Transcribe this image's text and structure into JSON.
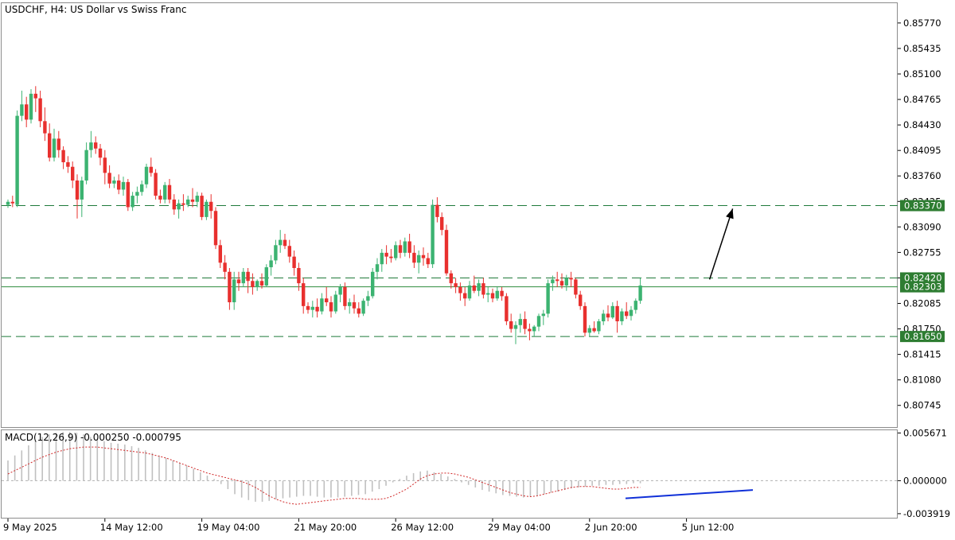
{
  "symbol_label": "USDCHF, H4:  US Dollar vs Swiss Franc",
  "macd": {
    "label": "MACD(12,26,9) -0.000250 -0.000795",
    "ticks": [
      "0.005671",
      "0.000000",
      "-0.003919"
    ],
    "tick_values": [
      0.005671,
      0.0,
      -0.003919
    ],
    "range": [
      -0.0044,
      0.0059
    ],
    "histogram": [
      0.0024,
      0.003,
      0.0036,
      0.0042,
      0.0048,
      0.0052,
      0.0055,
      0.0057,
      0.0058,
      0.0058,
      0.0057,
      0.0055,
      0.0052,
      0.0049,
      0.0047,
      0.0045,
      0.0044,
      0.0043,
      0.0041,
      0.0039,
      0.0036,
      0.0033,
      0.003,
      0.0027,
      0.0024,
      0.0021,
      0.0018,
      0.0014,
      0.001,
      0.0006,
      0.0002,
      -0.0004,
      -0.001,
      -0.0016,
      -0.002,
      -0.0023,
      -0.0025,
      -0.0025,
      -0.0024,
      -0.0022,
      -0.0021,
      -0.002,
      -0.0019,
      -0.0018,
      -0.0018,
      -0.0019,
      -0.002,
      -0.002,
      -0.002,
      -0.0019,
      -0.0018,
      -0.0017,
      -0.0016,
      -0.0013,
      -0.001,
      -0.0006,
      -0.0002,
      0.0002,
      0.0006,
      0.0009,
      0.0011,
      0.0012,
      0.001,
      0.0008,
      0.0005,
      0.0002,
      -0.0002,
      -0.0005,
      -0.0008,
      -0.0011,
      -0.0013,
      -0.0015,
      -0.0017,
      -0.0018,
      -0.0019,
      -0.002,
      -0.0019,
      -0.0018,
      -0.0016,
      -0.0014,
      -0.0013,
      -0.0011,
      -0.0009,
      -0.0008,
      -0.0007,
      -0.0006,
      -0.0006,
      -0.0005,
      -0.0005,
      -0.0004,
      -0.0004,
      -0.0003,
      -0.0003
    ],
    "signal": [
      0.0008,
      0.0012,
      0.0016,
      0.002,
      0.0024,
      0.0028,
      0.0031,
      0.0034,
      0.0036,
      0.0038,
      0.0039,
      0.004,
      0.004,
      0.004,
      0.0039,
      0.0038,
      0.0037,
      0.0036,
      0.0035,
      0.0034,
      0.0033,
      0.0031,
      0.0029,
      0.0027,
      0.0024,
      0.0021,
      0.0018,
      0.0015,
      0.0012,
      0.0009,
      0.0007,
      0.0005,
      0.0003,
      0.0001,
      -0.0001,
      -0.0004,
      -0.0008,
      -0.0013,
      -0.0018,
      -0.0022,
      -0.0025,
      -0.0027,
      -0.0028,
      -0.0027,
      -0.0026,
      -0.0025,
      -0.0024,
      -0.0023,
      -0.0022,
      -0.0021,
      -0.0021,
      -0.0021,
      -0.0022,
      -0.0022,
      -0.0022,
      -0.0021,
      -0.0018,
      -0.0014,
      -0.001,
      -0.0004,
      0.0002,
      0.0006,
      0.0008,
      0.0009,
      0.0009,
      0.0008,
      0.0006,
      0.0004,
      0.0001,
      -0.0002,
      -0.0005,
      -0.0008,
      -0.0011,
      -0.0014,
      -0.0016,
      -0.0018,
      -0.0019,
      -0.0018,
      -0.0016,
      -0.0014,
      -0.0012,
      -0.001,
      -0.0008,
      -0.0007,
      -0.0007,
      -0.0007,
      -0.0008,
      -0.0009,
      -0.001,
      -0.001,
      -0.0009,
      -0.0008,
      -0.0008
    ]
  },
  "chart_data": {
    "type": "candlestick",
    "price_range": [
      0.8046,
      0.8603
    ],
    "y_ticks": [
      "0.85770",
      "0.85435",
      "0.85100",
      "0.84765",
      "0.84430",
      "0.84095",
      "0.83760",
      "0.83425",
      "0.83090",
      "0.82755",
      "0.82420",
      "0.82085",
      "0.81750",
      "0.81415",
      "0.81080",
      "0.80745"
    ],
    "y_tick_values": [
      0.8577,
      0.85435,
      0.851,
      0.84765,
      0.8443,
      0.84095,
      0.8376,
      0.83425,
      0.8309,
      0.82755,
      0.8242,
      0.82085,
      0.8175,
      0.81415,
      0.8108,
      0.80745
    ],
    "x_labels": [
      "9 May 2025",
      "14 May 12:00",
      "19 May 04:00",
      "21 May 20:00",
      "26 May 12:00",
      "29 May 04:00",
      "2 Jun 20:00",
      "5 Jun 12:00"
    ],
    "x_label_bar_index": [
      0,
      21,
      42,
      63,
      84,
      105,
      126,
      147
    ],
    "levels": [
      {
        "label": "0.83370",
        "value": 0.8337,
        "style": "dashed",
        "color": "#1f7a3a"
      },
      {
        "label": "0.82420",
        "value": 0.8242,
        "style": "dashed",
        "color": "#1f7a3a"
      },
      {
        "label": "0.82303",
        "value": 0.82303,
        "style": "solid",
        "color": "#2e8b3e"
      },
      {
        "label": "0.81650",
        "value": 0.8165,
        "style": "dashed",
        "color": "#1f7a3a"
      }
    ],
    "arrow": {
      "from_bar": 152,
      "from_price": 0.824,
      "to_bar": 157,
      "to_price": 0.8333
    },
    "up_color": "#3cb371",
    "down_color": "#e8302e",
    "candles": [
      [
        0.8338,
        0.8345,
        0.8334,
        0.8342
      ],
      [
        0.8342,
        0.835,
        0.8335,
        0.834
      ],
      [
        0.8338,
        0.8462,
        0.8335,
        0.8455
      ],
      [
        0.8455,
        0.8488,
        0.8448,
        0.847
      ],
      [
        0.847,
        0.848,
        0.844,
        0.845
      ],
      [
        0.845,
        0.849,
        0.8445,
        0.8484
      ],
      [
        0.8484,
        0.8494,
        0.846,
        0.8478
      ],
      [
        0.8478,
        0.8488,
        0.844,
        0.8448
      ],
      [
        0.8448,
        0.8466,
        0.8422,
        0.8432
      ],
      [
        0.8432,
        0.8445,
        0.8395,
        0.84
      ],
      [
        0.84,
        0.8438,
        0.8395,
        0.8425
      ],
      [
        0.8425,
        0.8435,
        0.84,
        0.841
      ],
      [
        0.841,
        0.8415,
        0.8385,
        0.8394
      ],
      [
        0.8394,
        0.8402,
        0.838,
        0.8388
      ],
      [
        0.8388,
        0.8395,
        0.836,
        0.837
      ],
      [
        0.837,
        0.8378,
        0.832,
        0.8345
      ],
      [
        0.8345,
        0.8375,
        0.8322,
        0.837
      ],
      [
        0.837,
        0.842,
        0.8365,
        0.841
      ],
      [
        0.841,
        0.8435,
        0.84,
        0.842
      ],
      [
        0.842,
        0.8428,
        0.8405,
        0.8412
      ],
      [
        0.8412,
        0.8418,
        0.839,
        0.84
      ],
      [
        0.84,
        0.841,
        0.8365,
        0.838
      ],
      [
        0.838,
        0.839,
        0.836,
        0.8366
      ],
      [
        0.8366,
        0.8375,
        0.836,
        0.837
      ],
      [
        0.837,
        0.8378,
        0.8352,
        0.8358
      ],
      [
        0.8358,
        0.8375,
        0.835,
        0.8368
      ],
      [
        0.8368,
        0.8372,
        0.833,
        0.8335
      ],
      [
        0.8335,
        0.8355,
        0.833,
        0.835
      ],
      [
        0.835,
        0.8362,
        0.834,
        0.8355
      ],
      [
        0.8355,
        0.837,
        0.835,
        0.8365
      ],
      [
        0.8365,
        0.8392,
        0.836,
        0.8388
      ],
      [
        0.8388,
        0.84,
        0.8375,
        0.838
      ],
      [
        0.838,
        0.8385,
        0.8345,
        0.835
      ],
      [
        0.835,
        0.8358,
        0.834,
        0.8345
      ],
      [
        0.8345,
        0.8368,
        0.834,
        0.8364
      ],
      [
        0.8364,
        0.8372,
        0.834,
        0.8345
      ],
      [
        0.8345,
        0.8352,
        0.8325,
        0.8332
      ],
      [
        0.8332,
        0.8345,
        0.832,
        0.834
      ],
      [
        0.834,
        0.8352,
        0.833,
        0.8338
      ],
      [
        0.8338,
        0.835,
        0.8335,
        0.8345
      ],
      [
        0.8345,
        0.836,
        0.8335,
        0.8342
      ],
      [
        0.8342,
        0.8355,
        0.8335,
        0.835
      ],
      [
        0.835,
        0.8354,
        0.8318,
        0.8322
      ],
      [
        0.8322,
        0.8345,
        0.8318,
        0.8342
      ],
      [
        0.8342,
        0.8352,
        0.832,
        0.833
      ],
      [
        0.833,
        0.8335,
        0.828,
        0.8285
      ],
      [
        0.8285,
        0.8292,
        0.8255,
        0.8262
      ],
      [
        0.8262,
        0.8272,
        0.824,
        0.825
      ],
      [
        0.825,
        0.8255,
        0.82,
        0.821
      ],
      [
        0.821,
        0.825,
        0.82,
        0.824
      ],
      [
        0.824,
        0.825,
        0.8225,
        0.8235
      ],
      [
        0.8235,
        0.8255,
        0.823,
        0.825
      ],
      [
        0.825,
        0.8255,
        0.8222,
        0.8238
      ],
      [
        0.8238,
        0.8248,
        0.822,
        0.823
      ],
      [
        0.823,
        0.824,
        0.8225,
        0.8238
      ],
      [
        0.8238,
        0.8248,
        0.8228,
        0.8232
      ],
      [
        0.8232,
        0.826,
        0.823,
        0.8256
      ],
      [
        0.8256,
        0.8272,
        0.8245,
        0.8265
      ],
      [
        0.8265,
        0.8292,
        0.826,
        0.8285
      ],
      [
        0.8285,
        0.8305,
        0.8275,
        0.8292
      ],
      [
        0.8292,
        0.83,
        0.828,
        0.8284
      ],
      [
        0.8284,
        0.8292,
        0.8262,
        0.827
      ],
      [
        0.827,
        0.8278,
        0.8245,
        0.8255
      ],
      [
        0.8255,
        0.8262,
        0.8225,
        0.8235
      ],
      [
        0.8235,
        0.8242,
        0.8195,
        0.8205
      ],
      [
        0.8205,
        0.821,
        0.8195,
        0.82
      ],
      [
        0.82,
        0.8212,
        0.819,
        0.8204
      ],
      [
        0.8204,
        0.8215,
        0.819,
        0.8198
      ],
      [
        0.8198,
        0.8222,
        0.8194,
        0.8215
      ],
      [
        0.8215,
        0.823,
        0.8205,
        0.821
      ],
      [
        0.821,
        0.8218,
        0.819,
        0.8198
      ],
      [
        0.8198,
        0.8225,
        0.8195,
        0.822
      ],
      [
        0.822,
        0.8234,
        0.821,
        0.823
      ],
      [
        0.823,
        0.8236,
        0.82,
        0.8205
      ],
      [
        0.8205,
        0.8215,
        0.8195,
        0.821
      ],
      [
        0.821,
        0.822,
        0.8195,
        0.8202
      ],
      [
        0.8202,
        0.821,
        0.819,
        0.8195
      ],
      [
        0.8195,
        0.8215,
        0.8192,
        0.8212
      ],
      [
        0.8212,
        0.8225,
        0.8205,
        0.8218
      ],
      [
        0.8218,
        0.8255,
        0.8215,
        0.825
      ],
      [
        0.825,
        0.8268,
        0.824,
        0.826
      ],
      [
        0.826,
        0.828,
        0.825,
        0.8275
      ],
      [
        0.8275,
        0.8285,
        0.826,
        0.827
      ],
      [
        0.827,
        0.828,
        0.8262,
        0.8268
      ],
      [
        0.8268,
        0.829,
        0.8265,
        0.8285
      ],
      [
        0.8285,
        0.8292,
        0.8268,
        0.8275
      ],
      [
        0.8275,
        0.8295,
        0.827,
        0.829
      ],
      [
        0.829,
        0.83,
        0.8268,
        0.8275
      ],
      [
        0.8275,
        0.8285,
        0.8255,
        0.8262
      ],
      [
        0.8262,
        0.8278,
        0.8248,
        0.8272
      ],
      [
        0.8272,
        0.8282,
        0.8258,
        0.8268
      ],
      [
        0.8268,
        0.8275,
        0.8255,
        0.826
      ],
      [
        0.826,
        0.8345,
        0.8255,
        0.8338
      ],
      [
        0.8338,
        0.8348,
        0.8315,
        0.8322
      ],
      [
        0.8322,
        0.8328,
        0.8298,
        0.8305
      ],
      [
        0.8305,
        0.8312,
        0.8245,
        0.8248
      ],
      [
        0.8248,
        0.8252,
        0.8228,
        0.8235
      ],
      [
        0.8235,
        0.8242,
        0.8222,
        0.823
      ],
      [
        0.823,
        0.8236,
        0.8212,
        0.8222
      ],
      [
        0.8222,
        0.823,
        0.8205,
        0.8215
      ],
      [
        0.8215,
        0.8238,
        0.8212,
        0.8232
      ],
      [
        0.8232,
        0.8245,
        0.8222,
        0.8225
      ],
      [
        0.8225,
        0.824,
        0.8218,
        0.8235
      ],
      [
        0.8235,
        0.8242,
        0.8215,
        0.822
      ],
      [
        0.822,
        0.823,
        0.821,
        0.8222
      ],
      [
        0.8222,
        0.8228,
        0.821,
        0.8215
      ],
      [
        0.8215,
        0.823,
        0.8212,
        0.8225
      ],
      [
        0.8225,
        0.823,
        0.8212,
        0.8218
      ],
      [
        0.8218,
        0.8222,
        0.818,
        0.8185
      ],
      [
        0.8185,
        0.8195,
        0.817,
        0.8175
      ],
      [
        0.8175,
        0.8185,
        0.8155,
        0.818
      ],
      [
        0.818,
        0.8195,
        0.817,
        0.8188
      ],
      [
        0.8188,
        0.8198,
        0.8168,
        0.8175
      ],
      [
        0.8175,
        0.8182,
        0.816,
        0.8172
      ],
      [
        0.8172,
        0.818,
        0.8165,
        0.8178
      ],
      [
        0.8178,
        0.8195,
        0.8172,
        0.8192
      ],
      [
        0.8192,
        0.82,
        0.818,
        0.8195
      ],
      [
        0.8195,
        0.824,
        0.819,
        0.8235
      ],
      [
        0.8235,
        0.8245,
        0.8225,
        0.824
      ],
      [
        0.824,
        0.825,
        0.823,
        0.8238
      ],
      [
        0.8238,
        0.8248,
        0.8228,
        0.8232
      ],
      [
        0.8232,
        0.8246,
        0.8225,
        0.8242
      ],
      [
        0.8242,
        0.825,
        0.823,
        0.824
      ],
      [
        0.824,
        0.8242,
        0.8215,
        0.822
      ],
      [
        0.822,
        0.8225,
        0.82,
        0.8205
      ],
      [
        0.8205,
        0.821,
        0.8165,
        0.817
      ],
      [
        0.817,
        0.818,
        0.8165,
        0.8176
      ],
      [
        0.8176,
        0.8185,
        0.817,
        0.8172
      ],
      [
        0.8172,
        0.8188,
        0.8168,
        0.8185
      ],
      [
        0.8185,
        0.82,
        0.818,
        0.8195
      ],
      [
        0.8195,
        0.8206,
        0.8185,
        0.819
      ],
      [
        0.819,
        0.821,
        0.8188,
        0.8205
      ],
      [
        0.8205,
        0.8212,
        0.817,
        0.8185
      ],
      [
        0.8185,
        0.8202,
        0.818,
        0.8198
      ],
      [
        0.8198,
        0.821,
        0.8188,
        0.8192
      ],
      [
        0.8192,
        0.8205,
        0.8186,
        0.82
      ],
      [
        0.82,
        0.8215,
        0.8195,
        0.8212
      ],
      [
        0.8212,
        0.8242,
        0.8208,
        0.8232
      ]
    ]
  }
}
